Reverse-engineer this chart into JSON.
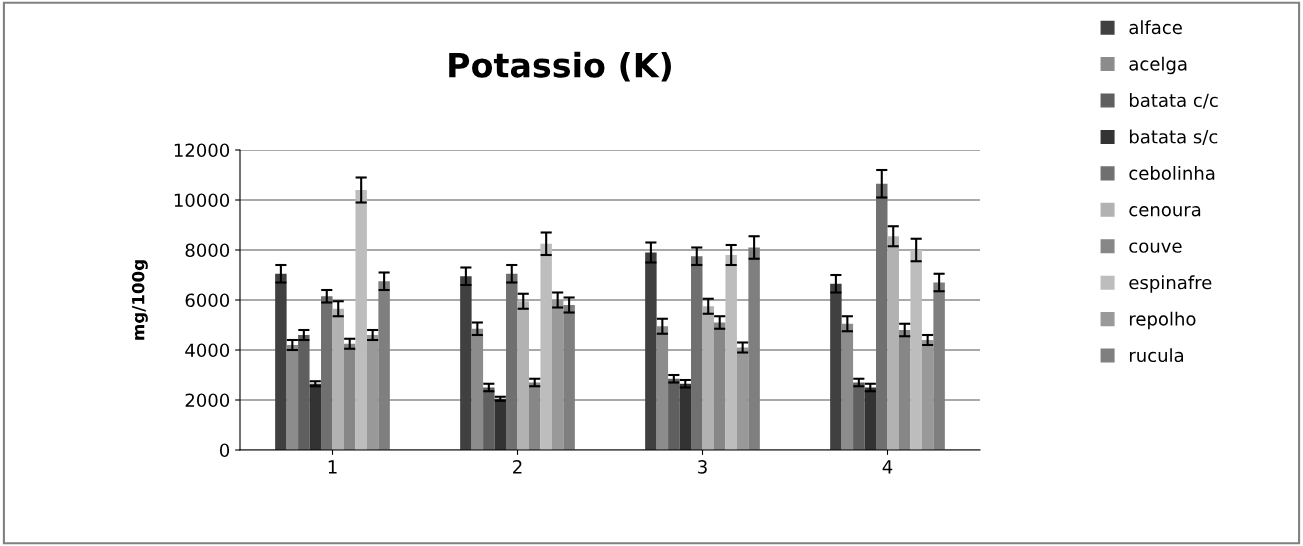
{
  "chart_data": {
    "type": "bar",
    "title": "Potassio (K)",
    "ylabel": "mg/100g",
    "categories": [
      "1",
      "2",
      "3",
      "4"
    ],
    "series": [
      {
        "name": "alface",
        "color": "#404040",
        "values": [
          7050,
          6950,
          7900,
          6650
        ],
        "errors": [
          350,
          350,
          400,
          350
        ]
      },
      {
        "name": "acelga",
        "color": "#8c8c8c",
        "values": [
          4200,
          4850,
          4950,
          5050
        ],
        "errors": [
          200,
          250,
          300,
          300
        ]
      },
      {
        "name": "batata c/c",
        "color": "#5f5f5f",
        "values": [
          4600,
          2500,
          2850,
          2700
        ],
        "errors": [
          200,
          150,
          150,
          150
        ]
      },
      {
        "name": "batata s/c",
        "color": "#333333",
        "values": [
          2650,
          2050,
          2650,
          2500
        ],
        "errors": [
          100,
          80,
          150,
          150
        ]
      },
      {
        "name": "cebolinha",
        "color": "#707070",
        "values": [
          6150,
          7050,
          7750,
          10650
        ],
        "errors": [
          250,
          350,
          350,
          550
        ]
      },
      {
        "name": "cenoura",
        "color": "#b2b2b2",
        "values": [
          5650,
          5950,
          5750,
          8550
        ],
        "errors": [
          300,
          300,
          300,
          400
        ]
      },
      {
        "name": "couve",
        "color": "#878787",
        "values": [
          4250,
          2700,
          5100,
          4800
        ],
        "errors": [
          200,
          150,
          250,
          250
        ]
      },
      {
        "name": "espinafre",
        "color": "#bdbdbd",
        "values": [
          10400,
          8250,
          7800,
          8000
        ],
        "errors": [
          500,
          450,
          400,
          450
        ]
      },
      {
        "name": "repolho",
        "color": "#999999",
        "values": [
          4600,
          6000,
          4100,
          4400
        ],
        "errors": [
          200,
          300,
          200,
          200
        ]
      },
      {
        "name": "rucula",
        "color": "#7f7f7f",
        "values": [
          6750,
          5800,
          8100,
          6700
        ],
        "errors": [
          350,
          300,
          450,
          350
        ]
      }
    ],
    "ylim": [
      0,
      12000
    ],
    "yticks": [
      0,
      2000,
      4000,
      6000,
      8000,
      10000,
      12000
    ],
    "grid": "y",
    "legend": "right"
  }
}
